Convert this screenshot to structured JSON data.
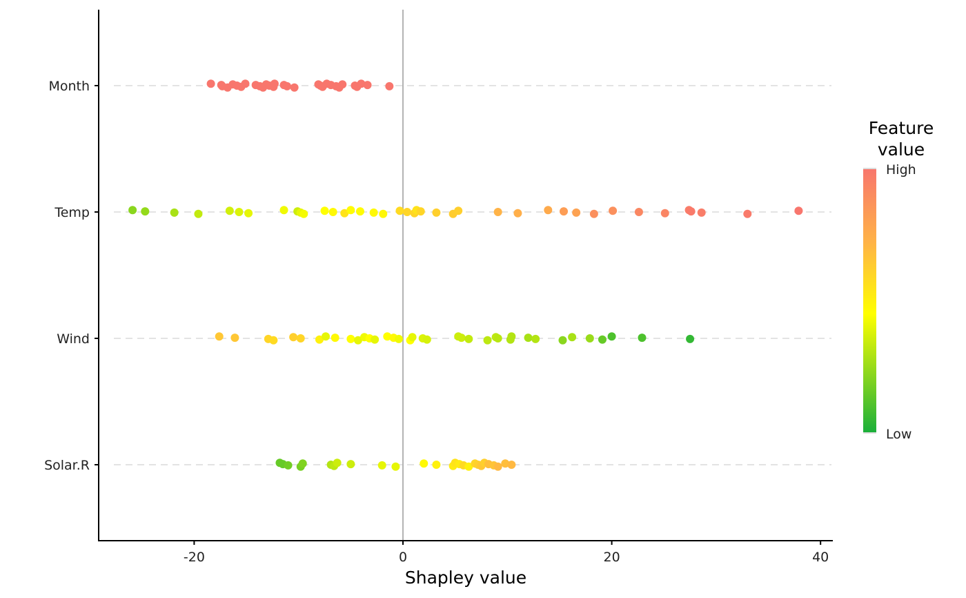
{
  "chart_data": {
    "type": "scatter",
    "subtype": "shap-beeswarm",
    "xlabel": "Shapley value",
    "ylabel": "",
    "xlim": [
      -29,
      41
    ],
    "xticks": [
      -20,
      0,
      20,
      40
    ],
    "grid": "dashed horizontal per feature",
    "zero_line": true,
    "legend": {
      "title_lines": [
        "Feature",
        "value"
      ],
      "high_label": "High",
      "low_label": "Low",
      "placement": "right",
      "colors": {
        "low": "#1aaf3a",
        "mid": "#ffff00",
        "midhigh": "#ffb347",
        "high": "#f8766d"
      }
    },
    "categories": [
      "Month",
      "Temp",
      "Wind",
      "Solar.R"
    ],
    "series": [
      {
        "feature": "Month",
        "points": [
          [
            -18.4,
            1
          ],
          [
            -17.4,
            1
          ],
          [
            -17.3,
            1
          ],
          [
            -16.8,
            1
          ],
          [
            -16.3,
            1
          ],
          [
            -15.9,
            1
          ],
          [
            -15.5,
            1
          ],
          [
            -15.1,
            1
          ],
          [
            -14.1,
            1
          ],
          [
            -13.7,
            1
          ],
          [
            -13.4,
            1
          ],
          [
            -13.1,
            1
          ],
          [
            -12.8,
            1
          ],
          [
            -12.4,
            1
          ],
          [
            -12.3,
            1
          ],
          [
            -11.4,
            1
          ],
          [
            -11.1,
            1
          ],
          [
            -10.4,
            1
          ],
          [
            -8.1,
            1
          ],
          [
            -7.9,
            1
          ],
          [
            -7.7,
            1
          ],
          [
            -7.3,
            1
          ],
          [
            -6.9,
            1
          ],
          [
            -6.4,
            1
          ],
          [
            -6.1,
            1
          ],
          [
            -5.8,
            1
          ],
          [
            -4.6,
            1
          ],
          [
            -4.4,
            1
          ],
          [
            -4.0,
            1
          ],
          [
            -3.4,
            1
          ],
          [
            -1.3,
            1
          ]
        ]
      },
      {
        "feature": "Temp",
        "points": [
          [
            -25.9,
            0.22
          ],
          [
            -24.7,
            0.24
          ],
          [
            -21.9,
            0.28
          ],
          [
            -19.6,
            0.33
          ],
          [
            -16.6,
            0.36
          ],
          [
            -15.7,
            0.38
          ],
          [
            -14.8,
            0.4
          ],
          [
            -11.4,
            0.42
          ],
          [
            -10.1,
            0.35
          ],
          [
            -9.8,
            0.4
          ],
          [
            -9.5,
            0.43
          ],
          [
            -7.5,
            0.45
          ],
          [
            -6.7,
            0.47
          ],
          [
            -5.6,
            0.55
          ],
          [
            -5.0,
            0.46
          ],
          [
            -4.1,
            0.46
          ],
          [
            -2.8,
            0.47
          ],
          [
            -1.9,
            0.48
          ],
          [
            -0.3,
            0.58
          ],
          [
            0.4,
            0.6
          ],
          [
            1.1,
            0.6
          ],
          [
            1.3,
            0.55
          ],
          [
            1.7,
            0.6
          ],
          [
            3.2,
            0.62
          ],
          [
            4.8,
            0.63
          ],
          [
            5.3,
            0.62
          ],
          [
            9.1,
            0.72
          ],
          [
            11.0,
            0.74
          ],
          [
            13.9,
            0.76
          ],
          [
            15.4,
            0.82
          ],
          [
            16.6,
            0.8
          ],
          [
            18.3,
            0.88
          ],
          [
            20.1,
            0.88
          ],
          [
            22.6,
            0.92
          ],
          [
            25.1,
            0.93
          ],
          [
            27.4,
            0.97
          ],
          [
            27.6,
            0.98
          ],
          [
            28.6,
            0.97
          ],
          [
            33.0,
            0.98
          ],
          [
            37.9,
            1
          ]
        ]
      },
      {
        "feature": "Wind",
        "points": [
          [
            -17.6,
            0.65
          ],
          [
            -16.1,
            0.65
          ],
          [
            -12.9,
            0.6
          ],
          [
            -12.4,
            0.58
          ],
          [
            -10.5,
            0.62
          ],
          [
            -9.8,
            0.6
          ],
          [
            -8.0,
            0.5
          ],
          [
            -7.4,
            0.4
          ],
          [
            -6.5,
            0.47
          ],
          [
            -5.0,
            0.45
          ],
          [
            -4.3,
            0.4
          ],
          [
            -3.7,
            0.42
          ],
          [
            -3.2,
            0.45
          ],
          [
            -2.7,
            0.4
          ],
          [
            -1.5,
            0.45
          ],
          [
            -0.9,
            0.47
          ],
          [
            -0.4,
            0.42
          ],
          [
            0.7,
            0.45
          ],
          [
            0.9,
            0.4
          ],
          [
            1.9,
            0.38
          ],
          [
            2.3,
            0.37
          ],
          [
            5.3,
            0.35
          ],
          [
            5.6,
            0.35
          ],
          [
            6.3,
            0.33
          ],
          [
            8.1,
            0.32
          ],
          [
            8.9,
            0.32
          ],
          [
            9.1,
            0.31
          ],
          [
            10.3,
            0.3
          ],
          [
            10.4,
            0.3
          ],
          [
            12.0,
            0.28
          ],
          [
            12.7,
            0.3
          ],
          [
            15.3,
            0.22
          ],
          [
            16.2,
            0.28
          ],
          [
            17.9,
            0.25
          ],
          [
            19.1,
            0.15
          ],
          [
            20.0,
            0.1
          ],
          [
            22.9,
            0.1
          ],
          [
            27.5,
            0.05
          ]
        ]
      },
      {
        "feature": "Solar.R",
        "points": [
          [
            -11.8,
            0.15
          ],
          [
            -11.5,
            0.15
          ],
          [
            -11.0,
            0.17
          ],
          [
            -9.8,
            0.18
          ],
          [
            -9.6,
            0.2
          ],
          [
            -6.9,
            0.3
          ],
          [
            -6.6,
            0.32
          ],
          [
            -6.3,
            0.35
          ],
          [
            -5.0,
            0.35
          ],
          [
            -2.0,
            0.4
          ],
          [
            -0.7,
            0.4
          ],
          [
            2.0,
            0.47
          ],
          [
            3.2,
            0.5
          ],
          [
            4.8,
            0.52
          ],
          [
            5.0,
            0.55
          ],
          [
            5.4,
            0.52
          ],
          [
            5.8,
            0.58
          ],
          [
            6.3,
            0.5
          ],
          [
            6.9,
            0.6
          ],
          [
            7.2,
            0.62
          ],
          [
            7.5,
            0.65
          ],
          [
            7.8,
            0.62
          ],
          [
            8.2,
            0.68
          ],
          [
            8.7,
            0.66
          ],
          [
            9.1,
            0.7
          ],
          [
            9.8,
            0.68
          ],
          [
            10.4,
            0.7
          ]
        ]
      }
    ]
  }
}
